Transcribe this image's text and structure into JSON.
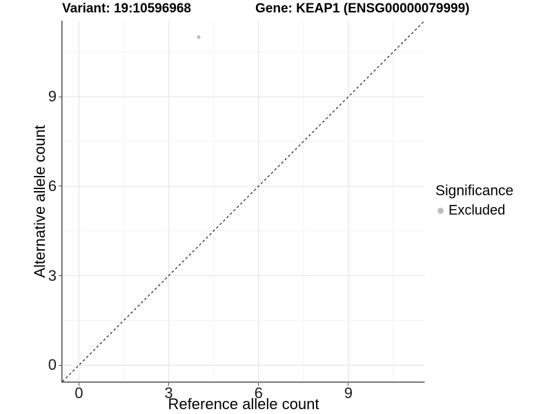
{
  "chart_data": {
    "type": "scatter",
    "title_left": "Variant: 19:10596968",
    "title_right": "Gene: KEAP1 (ENSG00000079999)",
    "xlabel": "Reference allele count",
    "ylabel": "Alternative allele count",
    "xlim": [
      -0.55,
      11.55
    ],
    "ylim": [
      -0.55,
      11.55
    ],
    "x_ticks": [
      0,
      3,
      6,
      9
    ],
    "y_ticks": [
      0,
      3,
      6,
      9
    ],
    "x_minor_gridlines": [
      1.5,
      4.5,
      7.5,
      10.5
    ],
    "y_minor_gridlines": [
      1.5,
      4.5,
      7.5,
      10.5
    ],
    "grid": "major and minor light-grey gridlines on white panel",
    "legend_position": "right",
    "legend": {
      "title": "Significance",
      "entries": [
        {
          "label": "Excluded",
          "color": "#bebebe"
        }
      ]
    },
    "series": [
      {
        "name": "Excluded",
        "color": "#bebebe",
        "points": [
          {
            "x": 4,
            "y": 11
          }
        ]
      }
    ],
    "reference_line": {
      "description": "identity line y = x",
      "style": "dashed",
      "color": "#000000"
    },
    "colors": {
      "grid_major": "#e4e4e4",
      "grid_minor": "#efefef",
      "axis_line": "#4a4a4a",
      "tick_text": "#1a1a1a",
      "point": "#bebebe"
    }
  }
}
